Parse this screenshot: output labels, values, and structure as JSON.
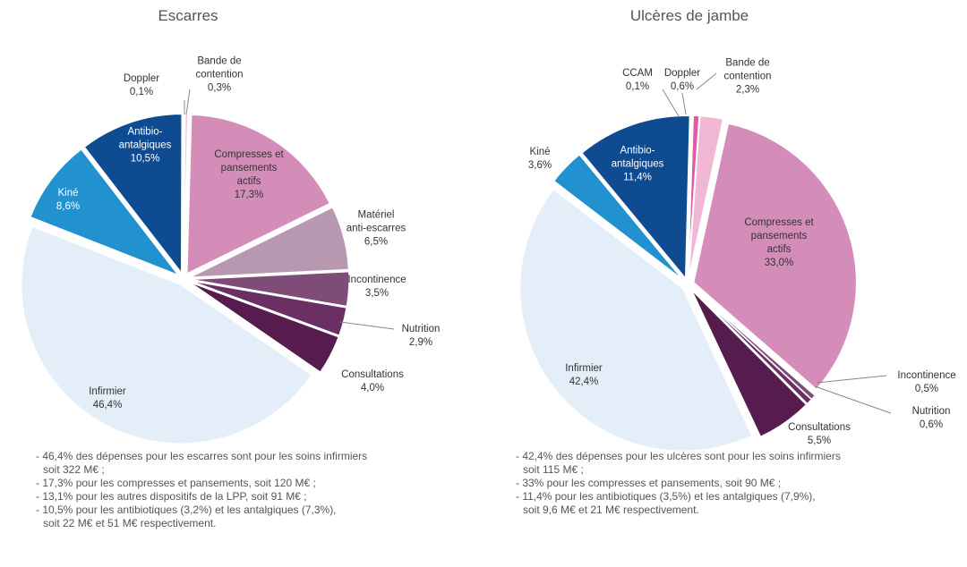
{
  "chart_data": [
    {
      "type": "pie",
      "title": "Escarres",
      "categories": [
        "Bande de\ncontention",
        "Compresses et\npansements\nactifs",
        "Matériel\nanti-escarres",
        "Incontinence",
        "Nutrition",
        "Consultations",
        "Infirmier",
        "Kiné",
        "Antibio-\nantalgiques",
        "Doppler"
      ],
      "values": [
        0.3,
        17.3,
        6.5,
        3.5,
        2.9,
        4.0,
        46.4,
        8.6,
        10.5,
        0.1
      ],
      "value_labels": [
        "0,3%",
        "17,3%",
        "6,5%",
        "3,5%",
        "2,9%",
        "4,0%",
        "46,4%",
        "8,6%",
        "10,5%",
        "0,1%"
      ],
      "colors": [
        "#f3c9de",
        "#d48cb9",
        "#b898b0",
        "#7f4b77",
        "#6a3064",
        "#561c4e",
        "#e3eef8",
        "#2291cf",
        "#0f4b91",
        "#d9d9d9"
      ],
      "notes": [
        "- 46,4% des dépenses pour les escarres sont pour les soins infirmiers\nsoit 322 M€ ;",
        "- 17,3% pour les compresses et pansements, soit 120 M€ ;",
        "- 13,1% pour les autres dispositifs de la LPP, soit 91 M€ ;",
        "- 10,5% pour les antibiotiques (3,2%) et les antalgiques (7,3%),\nsoit 22 M€ et 51 M€ respectivement."
      ]
    },
    {
      "type": "pie",
      "title": "Ulcères de jambe",
      "categories": [
        "Bande de\ncontention",
        "Compresses et\npansements\nactifs",
        "Incontinence",
        "Nutrition",
        "Consultations",
        "Infirmier",
        "Kiné",
        "Antibio-\nantalgiques",
        "CCAM",
        "Doppler"
      ],
      "values": [
        2.3,
        33.0,
        0.5,
        0.6,
        5.5,
        42.4,
        3.6,
        11.4,
        0.1,
        0.6
      ],
      "value_labels": [
        "2,3%",
        "33,0%",
        "0,5%",
        "0,6%",
        "5,5%",
        "42,4%",
        "3,6%",
        "11,4%",
        "0,1%",
        "0,6%"
      ],
      "colors": [
        "#f1b8d5",
        "#d48cb9",
        "#7f4b77",
        "#6a3064",
        "#561c4e",
        "#e3eef8",
        "#2291cf",
        "#0f4b91",
        "#d9d9d9",
        "#e05aa5"
      ],
      "notes": [
        "- 42,4% des dépenses pour les ulcères sont pour les soins infirmiers\nsoit 115 M€ ;",
        "- 33% pour les compresses et pansements, soit 90 M€ ;",
        "- 11,4% pour les antibiotiques (3,5%) et les antalgiques (7,9%),\nsoit 9,6 M€ et 21 M€ respectivement."
      ]
    }
  ]
}
